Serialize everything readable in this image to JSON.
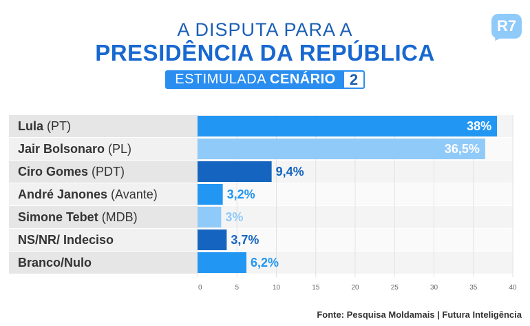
{
  "header": {
    "title_line1": "A DISPUTA PARA A",
    "title_line2": "PRESIDÊNCIA DA REPÚBLICA",
    "scenario_prefix": "ESTIMULADA",
    "scenario_word": "CENÁRIO",
    "scenario_number": "2"
  },
  "logo": {
    "text": "R7",
    "color": "#90caf9"
  },
  "source": "Fonte: Pesquisa Moldamais | Futura Inteligência",
  "chart_data": {
    "type": "bar",
    "orientation": "horizontal",
    "categories": [
      {
        "name": "Lula",
        "party": "(PT)"
      },
      {
        "name": "Jair Bolsonaro",
        "party": "(PL)"
      },
      {
        "name": "Ciro Gomes",
        "party": "(PDT)"
      },
      {
        "name": "André Janones",
        "party": "(Avante)"
      },
      {
        "name": "Simone Tebet",
        "party": "(MDB)"
      },
      {
        "name": "NS/NR/ Indeciso",
        "party": ""
      },
      {
        "name": "Branco/Nulo",
        "party": ""
      }
    ],
    "values": [
      38,
      36.5,
      9.4,
      3.2,
      3,
      3.7,
      6.2
    ],
    "value_labels": [
      "38%",
      "36,5%",
      "9,4%",
      "3,2%",
      "3%",
      "3,7%",
      "6,2%"
    ],
    "bar_colors": [
      "#2196f3",
      "#90caf9",
      "#1565c0",
      "#2196f3",
      "#90caf9",
      "#1565c0",
      "#2196f3"
    ],
    "label_positions": [
      "inside",
      "inside",
      "outside",
      "outside",
      "outside",
      "outside",
      "outside"
    ],
    "x_ticks": [
      0,
      5,
      10,
      15,
      20,
      25,
      30,
      35,
      40
    ],
    "xlim": [
      0,
      40
    ],
    "grid": true
  }
}
